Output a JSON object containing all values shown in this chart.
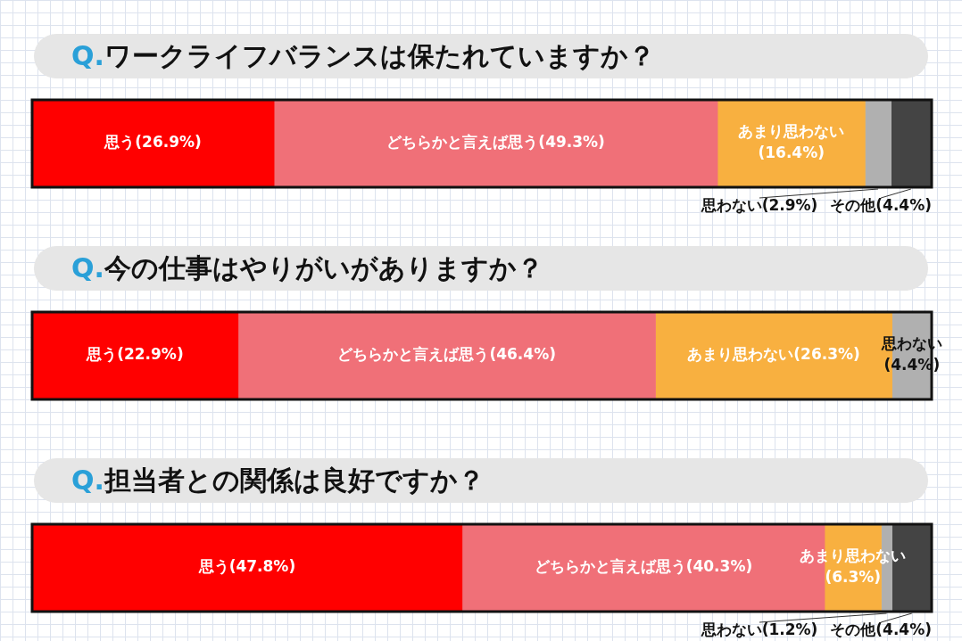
{
  "chart_data": [
    {
      "type": "bar",
      "orientation": "horizontal",
      "stacked": true,
      "title": "Q.ワークライフバランスは保たれていますか？",
      "categories": [
        null
      ],
      "xlim": [
        0,
        100
      ],
      "tick_labels": false,
      "legend": false,
      "series": [
        {
          "name": "思う",
          "color": "#ff0000",
          "values": [
            26.9
          ],
          "value_labels": [
            "(26.9%)"
          ]
        },
        {
          "name": "どちらかと言えば思う",
          "color": "#f07078",
          "values": [
            49.3
          ],
          "value_labels": [
            "(49.3%)"
          ]
        },
        {
          "name": "あまり思わない",
          "color": "#f8b040",
          "values": [
            16.4
          ],
          "value_labels": [
            "(16.4%)"
          ]
        },
        {
          "name": "思わない",
          "color": "#b0b0b0",
          "values": [
            2.9
          ],
          "value_labels": [
            "(2.9%)"
          ]
        },
        {
          "name": "その他",
          "color": "#444444",
          "values": [
            4.4
          ],
          "value_labels": [
            "(4.4%)"
          ]
        }
      ]
    },
    {
      "type": "bar",
      "orientation": "horizontal",
      "stacked": true,
      "title": "Q.今の仕事はやりがいがありますか？",
      "categories": [
        null
      ],
      "xlim": [
        0,
        100
      ],
      "tick_labels": false,
      "legend": false,
      "series": [
        {
          "name": "思う",
          "color": "#ff0000",
          "values": [
            22.9
          ],
          "value_labels": [
            "(22.9%)"
          ]
        },
        {
          "name": "どちらかと言えば思う",
          "color": "#f07078",
          "values": [
            46.4
          ],
          "value_labels": [
            "(46.4%)"
          ]
        },
        {
          "name": "あまり思わない",
          "color": "#f8b040",
          "values": [
            26.3
          ],
          "value_labels": [
            "(26.3%)"
          ]
        },
        {
          "name": "思わない",
          "color": "#b0b0b0",
          "values": [
            4.4
          ],
          "value_labels": [
            "(4.4%)"
          ]
        }
      ]
    },
    {
      "type": "bar",
      "orientation": "horizontal",
      "stacked": true,
      "title": "Q.担当者との関係は良好ですか？",
      "categories": [
        null
      ],
      "xlim": [
        0,
        100
      ],
      "tick_labels": false,
      "legend": false,
      "series": [
        {
          "name": "思う",
          "color": "#ff0000",
          "values": [
            47.8
          ],
          "value_labels": [
            "(47.8%)"
          ]
        },
        {
          "name": "どちらかと言えば思う",
          "color": "#f07078",
          "values": [
            40.3
          ],
          "value_labels": [
            "(40.3%)"
          ]
        },
        {
          "name": "あまり思わない",
          "color": "#f8b040",
          "values": [
            6.3
          ],
          "value_labels": [
            "(6.3%)"
          ]
        },
        {
          "name": "思わない",
          "color": "#b0b0b0",
          "values": [
            1.2
          ],
          "value_labels": [
            "(1.2%)"
          ]
        },
        {
          "name": "その他",
          "color": "#444444",
          "values": [
            4.4
          ],
          "value_labels": [
            "(4.4%)"
          ]
        }
      ]
    }
  ]
}
